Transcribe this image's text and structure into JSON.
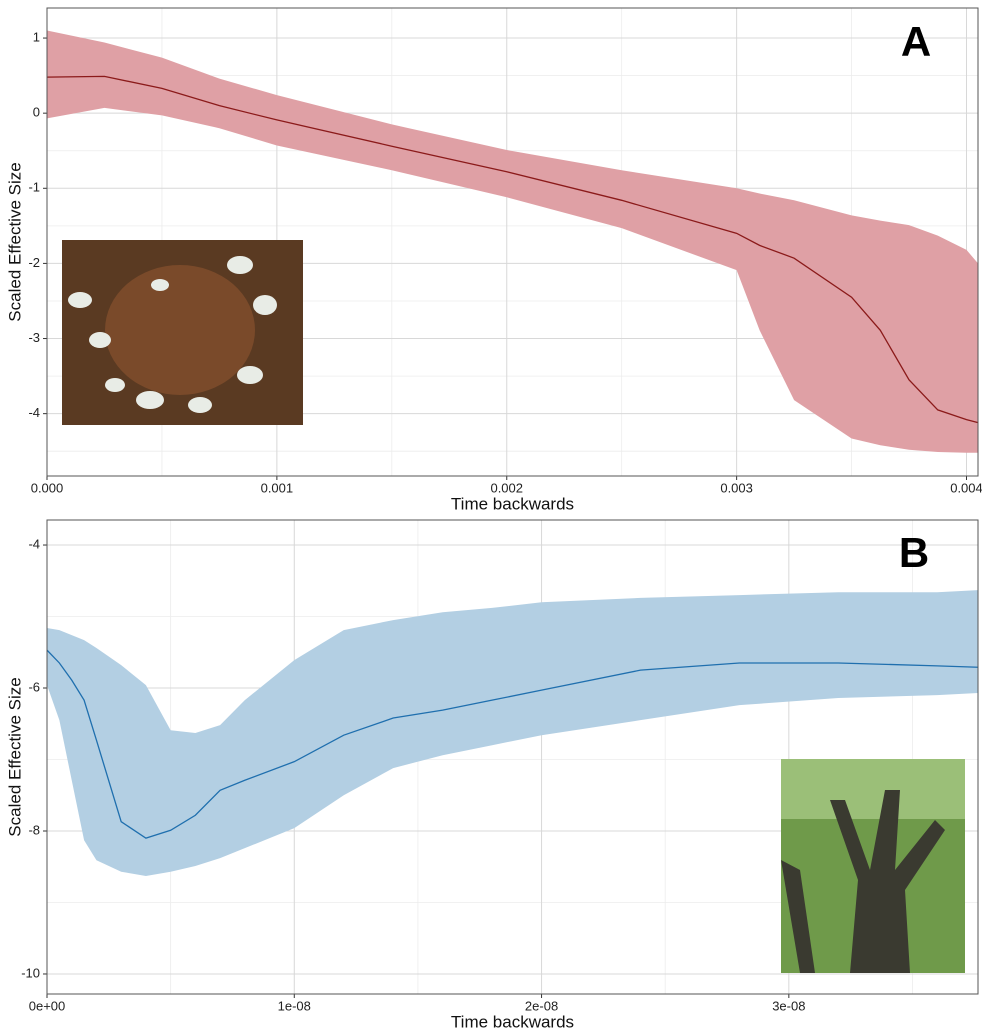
{
  "chart_data": [
    {
      "type": "line",
      "label": "A",
      "x_label": "Time backwards",
      "y_label": "Scaled Effective Size",
      "x": [
        0,
        0.00025,
        0.0005,
        0.00075,
        0.001,
        0.0015,
        0.002,
        0.0025,
        0.003,
        0.0031,
        0.00325,
        0.0035,
        0.003625,
        0.00375,
        0.003875,
        0.004,
        0.00405
      ],
      "values": [
        0.48,
        0.49,
        0.33,
        0.1,
        -0.09,
        -0.44,
        -0.78,
        -1.16,
        -1.6,
        -1.76,
        -1.93,
        -2.45,
        -2.89,
        -3.55,
        -3.95,
        -4.08,
        -4.12
      ],
      "upper": [
        1.1,
        0.94,
        0.74,
        0.46,
        0.24,
        -0.15,
        -0.49,
        -0.76,
        -1.0,
        -1.07,
        -1.16,
        -1.36,
        -1.43,
        -1.49,
        -1.63,
        -1.82,
        -2.0
      ],
      "lower": [
        -0.07,
        0.07,
        -0.03,
        -0.2,
        -0.43,
        -0.76,
        -1.12,
        -1.53,
        -2.09,
        -2.89,
        -3.82,
        -4.33,
        -4.42,
        -4.48,
        -4.51,
        -4.52,
        -4.52
      ],
      "color": "#8b1a1a",
      "band_color": "#dfa0a5",
      "xlim": [
        0,
        0.00405
      ],
      "ylim": [
        -4.83,
        1.4
      ],
      "xticks": [
        {
          "value": 0,
          "label": "0.000"
        },
        {
          "value": 0.001,
          "label": "0.001"
        },
        {
          "value": 0.002,
          "label": "0.002"
        },
        {
          "value": 0.003,
          "label": "0.003"
        },
        {
          "value": 0.004,
          "label": "0.004"
        }
      ],
      "yticks": [
        -4,
        -3,
        -2,
        -1,
        0,
        1
      ],
      "grid": true
    },
    {
      "type": "line",
      "label": "B",
      "x_label": "Time backwards",
      "y_label": "Scaled Effective Size",
      "x": [
        0,
        5e-10,
        1e-09,
        1.5e-09,
        2e-09,
        3e-09,
        4e-09,
        5e-09,
        6e-09,
        7e-09,
        8e-09,
        1e-08,
        1.2e-08,
        1.4e-08,
        1.6e-08,
        1.8e-08,
        2e-08,
        2.4e-08,
        2.8e-08,
        3.2e-08,
        3.6e-08,
        3.765e-08
      ],
      "values": [
        -5.47,
        -5.65,
        -5.89,
        -6.17,
        -6.73,
        -7.87,
        -8.1,
        -7.99,
        -7.78,
        -7.43,
        -7.29,
        -7.03,
        -6.66,
        -6.42,
        -6.31,
        -6.17,
        -6.03,
        -5.75,
        -5.65,
        -5.65,
        -5.69,
        -5.71
      ],
      "upper": [
        -5.16,
        -5.19,
        -5.26,
        -5.33,
        -5.44,
        -5.68,
        -5.96,
        -6.59,
        -6.63,
        -6.52,
        -6.17,
        -5.61,
        -5.19,
        -5.05,
        -4.94,
        -4.88,
        -4.8,
        -4.74,
        -4.7,
        -4.66,
        -4.66,
        -4.63
      ],
      "lower": [
        -5.96,
        -6.45,
        -7.29,
        -8.13,
        -8.41,
        -8.57,
        -8.63,
        -8.57,
        -8.49,
        -8.38,
        -8.24,
        -7.96,
        -7.5,
        -7.12,
        -6.94,
        -6.8,
        -6.66,
        -6.45,
        -6.24,
        -6.14,
        -6.1,
        -6.07
      ],
      "color": "#1f6fae",
      "band_color": "#b3cfe3",
      "xlim": [
        0,
        3.765e-08
      ],
      "ylim": [
        -10.28,
        -3.65
      ],
      "xticks": [
        {
          "value": 0,
          "label": "0e+00"
        },
        {
          "value": 1e-08,
          "label": "1e-08"
        },
        {
          "value": 2e-08,
          "label": "2e-08"
        },
        {
          "value": 3e-08,
          "label": "3e-08"
        }
      ],
      "yticks": [
        -10,
        -8,
        -6,
        -4
      ],
      "grid": true
    }
  ]
}
